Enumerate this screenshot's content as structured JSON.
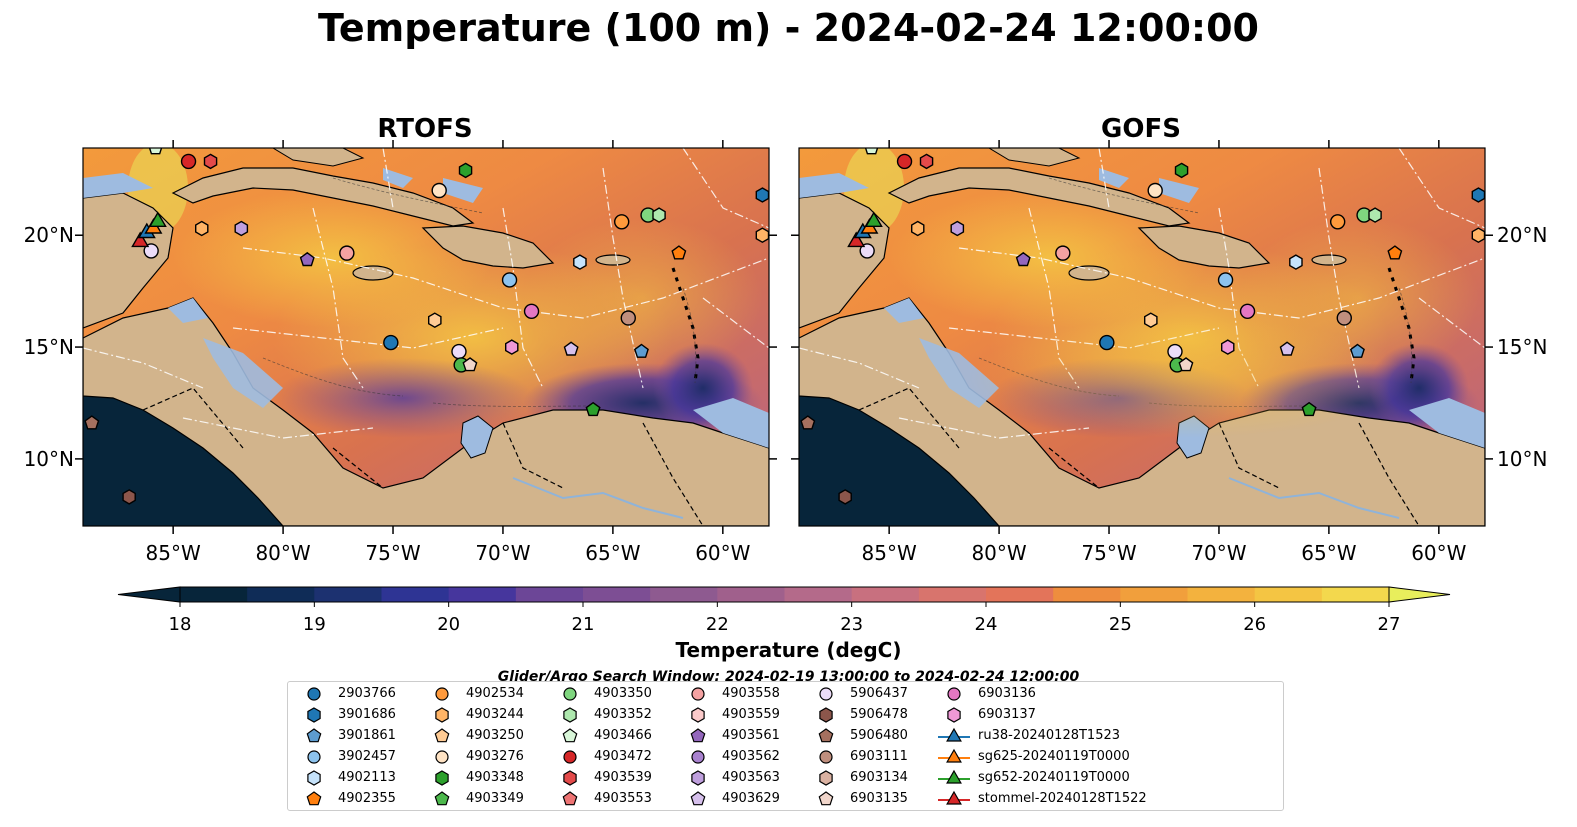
{
  "title": "Temperature (100 m) - 2024-02-24 12:00:00",
  "panels": [
    {
      "title": "RTOFS"
    },
    {
      "title": "GOFS"
    }
  ],
  "axes": {
    "x_ticks": [
      "85°W",
      "80°W",
      "75°W",
      "70°W",
      "65°W",
      "60°W"
    ],
    "y_ticks": [
      "20°N",
      "15°N",
      "10°N"
    ]
  },
  "colorbar": {
    "label": "Temperature (degC)",
    "ticks": [
      "18",
      "19",
      "20",
      "21",
      "22",
      "23",
      "24",
      "25",
      "26",
      "27"
    ],
    "range": [
      18,
      27
    ],
    "extend": "both",
    "colors": [
      "#07253a",
      "#0f2c57",
      "#1c3170",
      "#2e3494",
      "#46369d",
      "#5a3d99",
      "#6c4697",
      "#7d4e94",
      "#8e5a90",
      "#a0608c",
      "#b46a8a",
      "#c8707f",
      "#d8746d",
      "#e3745a",
      "#ea7d49",
      "#ee8d3e",
      "#f19f3c",
      "#f3b23e",
      "#f4c543",
      "#f3d84d",
      "#e8ee5c"
    ]
  },
  "search_window": "Glider/Argo Search Window: 2024-02-19 13:00:00 to 2024-02-24 12:00:00",
  "map_colors": {
    "land": "#d2b48c",
    "shallow": "#9ebbe0",
    "deep_cold": "#07253a"
  },
  "legend": [
    {
      "label": "2903766",
      "marker": "circle",
      "color": "#1f77b4"
    },
    {
      "label": "3901686",
      "marker": "hexagon",
      "color": "#1f77b4"
    },
    {
      "label": "3901861",
      "marker": "pentagon",
      "color": "#5d9cd0"
    },
    {
      "label": "3902457",
      "marker": "circle",
      "color": "#8dc3ee"
    },
    {
      "label": "4902113",
      "marker": "hexagon",
      "color": "#c6e3fb"
    },
    {
      "label": "4902355",
      "marker": "pentagon",
      "color": "#ff7f0e"
    },
    {
      "label": "4902534",
      "marker": "circle",
      "color": "#ff9a3c"
    },
    {
      "label": "4903244",
      "marker": "hexagon",
      "color": "#ffb466"
    },
    {
      "label": "4903250",
      "marker": "pentagon",
      "color": "#ffcb94"
    },
    {
      "label": "4903276",
      "marker": "circle",
      "color": "#ffe3c4"
    },
    {
      "label": "4903348",
      "marker": "hexagon",
      "color": "#2ca02c"
    },
    {
      "label": "4903349",
      "marker": "pentagon",
      "color": "#4cb84c"
    },
    {
      "label": "4903350",
      "marker": "circle",
      "color": "#7fd67f"
    },
    {
      "label": "4903352",
      "marker": "hexagon",
      "color": "#aee8ae"
    },
    {
      "label": "4903466",
      "marker": "pentagon",
      "color": "#d8f6d8"
    },
    {
      "label": "4903472",
      "marker": "circle",
      "color": "#d62728"
    },
    {
      "label": "4903539",
      "marker": "hexagon",
      "color": "#e34a4a"
    },
    {
      "label": "4903553",
      "marker": "pentagon",
      "color": "#ee7474"
    },
    {
      "label": "4903558",
      "marker": "circle",
      "color": "#f4a2a2"
    },
    {
      "label": "4903559",
      "marker": "hexagon",
      "color": "#fbcaca"
    },
    {
      "label": "4903561",
      "marker": "pentagon",
      "color": "#9467bd"
    },
    {
      "label": "4903562",
      "marker": "circle",
      "color": "#a982cf"
    },
    {
      "label": "4903563",
      "marker": "hexagon",
      "color": "#bf9fdd"
    },
    {
      "label": "4903629",
      "marker": "pentagon",
      "color": "#d6c0ec"
    },
    {
      "label": "5906437",
      "marker": "circle",
      "color": "#ecdcf8"
    },
    {
      "label": "5906478",
      "marker": "hexagon",
      "color": "#8c564b"
    },
    {
      "label": "5906480",
      "marker": "pentagon",
      "color": "#a5705f"
    },
    {
      "label": "6903111",
      "marker": "circle",
      "color": "#c08f7e"
    },
    {
      "label": "6903134",
      "marker": "hexagon",
      "color": "#dbb2a2"
    },
    {
      "label": "6903135",
      "marker": "pentagon",
      "color": "#f1d6cb"
    },
    {
      "label": "6903136",
      "marker": "circle",
      "color": "#e377c2"
    },
    {
      "label": "6903137",
      "marker": "hexagon",
      "color": "#ef98d6"
    },
    {
      "label": "ru38-20240128T1523",
      "marker": "triangle-line",
      "color": "#1f77b4"
    },
    {
      "label": "sg625-20240119T0000",
      "marker": "triangle-line",
      "color": "#ff7f0e"
    },
    {
      "label": "sg652-20240119T0000",
      "marker": "triangle-line",
      "color": "#2ca02c"
    },
    {
      "label": "stommel-20240128T1522",
      "marker": "triangle-line",
      "color": "#d62728"
    }
  ],
  "markers": [
    {
      "name": "4903472",
      "lon": -84.3,
      "lat": 23.3,
      "shape": "circle",
      "color": "#d62728"
    },
    {
      "name": "4903539",
      "lon": -83.3,
      "lat": 23.3,
      "shape": "hexagon",
      "color": "#e34a4a"
    },
    {
      "name": "4903466",
      "lon": -85.8,
      "lat": 23.9,
      "shape": "pentagon",
      "color": "#d8f6d8"
    },
    {
      "name": "4903244",
      "lon": -83.7,
      "lat": 20.3,
      "shape": "hexagon",
      "color": "#ffb466"
    },
    {
      "name": "4903563",
      "lon": -81.9,
      "lat": 20.3,
      "shape": "hexagon",
      "color": "#bf9fdd"
    },
    {
      "name": "5906437",
      "lon": -86.0,
      "lat": 19.3,
      "shape": "circle",
      "color": "#ecdcf8"
    },
    {
      "name": "4903561",
      "lon": -78.9,
      "lat": 18.9,
      "shape": "pentagon",
      "color": "#9467bd"
    },
    {
      "name": "4903558",
      "lon": -77.1,
      "lat": 19.2,
      "shape": "circle",
      "color": "#f4a2a2"
    },
    {
      "name": "4903276",
      "lon": -72.9,
      "lat": 22.0,
      "shape": "circle",
      "color": "#ffe3c4"
    },
    {
      "name": "4903348",
      "lon": -71.7,
      "lat": 22.9,
      "shape": "hexagon",
      "color": "#2ca02c"
    },
    {
      "name": "4902534",
      "lon": -64.6,
      "lat": 20.6,
      "shape": "circle",
      "color": "#ff9a3c"
    },
    {
      "name": "4903350",
      "lon": -63.4,
      "lat": 20.9,
      "shape": "circle",
      "color": "#7fd67f"
    },
    {
      "name": "4903352",
      "lon": -62.9,
      "lat": 20.9,
      "shape": "hexagon",
      "color": "#aee8ae"
    },
    {
      "name": "4902355",
      "lon": -62.0,
      "lat": 19.2,
      "shape": "pentagon",
      "color": "#ff7f0e"
    },
    {
      "name": "4902113",
      "lon": -66.5,
      "lat": 18.8,
      "shape": "hexagon",
      "color": "#c6e3fb"
    },
    {
      "name": "3902457",
      "lon": -69.7,
      "lat": 18.0,
      "shape": "circle",
      "color": "#8dc3ee"
    },
    {
      "name": "2903766",
      "lon": -75.1,
      "lat": 15.2,
      "shape": "circle",
      "color": "#1f77b4"
    },
    {
      "name": "4903250",
      "lon": -73.1,
      "lat": 16.2,
      "shape": "hexagon",
      "color": "#ffcb94"
    },
    {
      "name": "6903136",
      "lon": -68.7,
      "lat": 16.6,
      "shape": "circle",
      "color": "#e377c2"
    },
    {
      "name": "6903111",
      "lon": -64.3,
      "lat": 16.3,
      "shape": "circle",
      "color": "#c08f7e"
    },
    {
      "name": "5906437b",
      "lon": -72.0,
      "lat": 14.8,
      "shape": "circle",
      "color": "#ecdcf8"
    },
    {
      "name": "4903349",
      "lon": -71.9,
      "lat": 14.2,
      "shape": "circle",
      "color": "#4cb84c"
    },
    {
      "name": "6903135",
      "lon": -71.5,
      "lat": 14.2,
      "shape": "pentagon",
      "color": "#f1d6cb"
    },
    {
      "name": "6903137",
      "lon": -69.6,
      "lat": 15.0,
      "shape": "hexagon",
      "color": "#ef98d6"
    },
    {
      "name": "4903629",
      "lon": -66.9,
      "lat": 14.9,
      "shape": "pentagon",
      "color": "#d6c0ec"
    },
    {
      "name": "3901861",
      "lon": -63.7,
      "lat": 14.8,
      "shape": "pentagon",
      "color": "#5d9cd0"
    },
    {
      "name": "4903349b",
      "lon": -65.9,
      "lat": 12.2,
      "shape": "pentagon",
      "color": "#2ca02c"
    },
    {
      "name": "3901686",
      "lon": -58.2,
      "lat": 21.8,
      "shape": "hexagon",
      "color": "#1f77b4"
    },
    {
      "name": "4903244b",
      "lon": -58.2,
      "lat": 20.0,
      "shape": "hexagon",
      "color": "#ffb466"
    },
    {
      "name": "5906480",
      "lon": -88.7,
      "lat": 11.6,
      "shape": "pentagon",
      "color": "#a5705f"
    },
    {
      "name": "5906478",
      "lon": -87.0,
      "lat": 8.3,
      "shape": "hexagon",
      "color": "#8c564b"
    },
    {
      "name": "stommel",
      "lon": -86.5,
      "lat": 19.7,
      "shape": "triangle",
      "color": "#d62728"
    },
    {
      "name": "ru38",
      "lon": -86.2,
      "lat": 20.1,
      "shape": "triangle",
      "color": "#1f77b4"
    },
    {
      "name": "sg625",
      "lon": -85.9,
      "lat": 20.3,
      "shape": "triangle",
      "color": "#ff7f0e"
    },
    {
      "name": "sg652",
      "lon": -85.7,
      "lat": 20.6,
      "shape": "triangle",
      "color": "#2ca02c"
    }
  ]
}
